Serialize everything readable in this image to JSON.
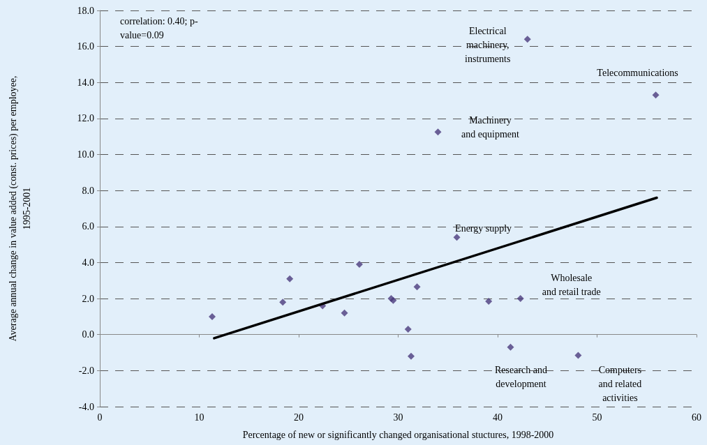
{
  "chart_data": {
    "type": "scatter",
    "xlabel": "Percentage of new or significantly changed organisational stuctures, 1998-2000",
    "ylabel": "Average annual change in value added (const. prices) per employee,\n1995-2001",
    "series": [
      {
        "color": "#4b3b7d",
        "x": [
          11.3,
          18.4,
          19.1,
          22.4,
          24.6,
          26.1,
          29.3,
          29.5,
          31.9,
          31.0,
          31.3,
          34.0,
          35.9,
          39.1,
          41.3,
          42.3,
          43.0,
          48.1,
          55.9
        ],
        "values": [
          1.0,
          1.8,
          3.1,
          1.6,
          1.2,
          3.9,
          2.0,
          1.9,
          2.65,
          0.3,
          -1.2,
          11.25,
          5.4,
          1.85,
          -0.7,
          2.0,
          16.4,
          -1.15,
          13.3
        ]
      },
      {
        "type": "line",
        "marker": "none",
        "color": "#000000",
        "x": [
          11.5,
          56.0
        ],
        "values": [
          -0.2,
          7.6
        ]
      }
    ],
    "xlim": [
      0,
      60
    ],
    "xticks": [
      0,
      10,
      20,
      30,
      40,
      50,
      60
    ],
    "ylim": [
      -4,
      18
    ],
    "yticks": [
      {
        "value": -4,
        "label": "-4.0"
      },
      {
        "value": -2,
        "label": "-2.0"
      },
      {
        "value": 0,
        "label": "0.0"
      },
      {
        "value": 2,
        "label": "2.0"
      },
      {
        "value": 4,
        "label": "4.0"
      },
      {
        "value": 6,
        "label": "6.0"
      },
      {
        "value": 8,
        "label": "8.0"
      },
      {
        "value": 10,
        "label": "10.0"
      },
      {
        "value": 12,
        "label": "12.0"
      },
      {
        "value": 14,
        "label": "14.0"
      },
      {
        "value": 16,
        "label": "16.0"
      },
      {
        "value": 18,
        "label": "18.0"
      }
    ],
    "grid": "y",
    "marker": "diamond",
    "annotations": [
      "correlation: 0.40; p-\nvalue=0.09",
      {
        "text": "Electrical\nmachinery,\ninstruments",
        "x": 43.0,
        "y": 16.4
      },
      {
        "text": "Telecommunications",
        "x": 55.9,
        "y": 13.3
      },
      {
        "text": "Machinery\nand equipment",
        "x": 34.0,
        "y": 11.25
      },
      {
        "text": "Energy supply",
        "x": 35.9,
        "y": 5.4
      },
      {
        "text": "Wholesale\nand retail trade",
        "x": 42.3,
        "y": 2.0
      },
      {
        "text": "Research and\ndevelopment",
        "x": 41.3,
        "y": -0.7
      },
      {
        "text": "Computers\nand related\nactivities",
        "x": 48.1,
        "y": -1.15
      }
    ]
  }
}
